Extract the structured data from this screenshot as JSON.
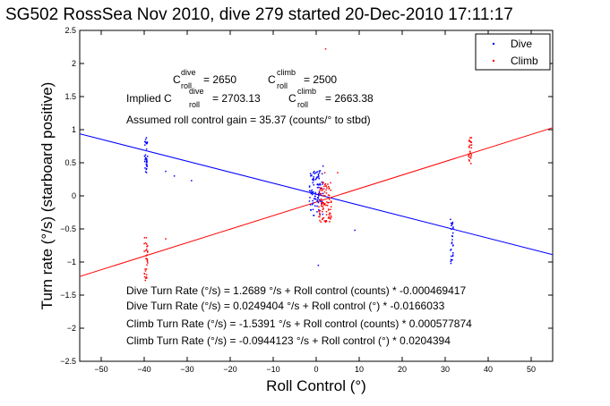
{
  "chart_data": {
    "type": "scatter",
    "title": "SG502 RossSea Nov 2010, dive 279 started 20-Dec-2010 17:11:17",
    "xlabel": "Roll Control (°)",
    "ylabel": "Turn rate (°/s) (starboard positive)",
    "xlim": [
      -55,
      55
    ],
    "ylim": [
      -2.5,
      2.5
    ],
    "xticks": [
      -50,
      -40,
      -30,
      -20,
      -10,
      0,
      10,
      20,
      30,
      40,
      50
    ],
    "yticks": [
      -2.5,
      -2,
      -1.5,
      -1,
      -0.5,
      0,
      0.5,
      1,
      1.5,
      2,
      2.5
    ],
    "xtick_labels": [
      "−50",
      "−40",
      "−30",
      "−20",
      "−10",
      "0",
      "10",
      "20",
      "30",
      "40",
      "50"
    ],
    "ytick_labels": [
      "−2.5",
      "−2",
      "−1.5",
      "−1",
      "−0.5",
      "0",
      "0.5",
      "1",
      "1.5",
      "2",
      "2.5"
    ],
    "grid": false,
    "legend_position": "top-right",
    "series": [
      {
        "name": "Dive",
        "color": "#0000ff",
        "marker": "point",
        "clusters": [
          {
            "x_center": -39.6,
            "x_spread": 0.4,
            "y_range": [
              0.35,
              0.88
            ],
            "count": 32
          },
          {
            "x_center": 0.0,
            "x_spread": 1.6,
            "y_range": [
              -0.3,
              0.38
            ],
            "count": 90
          },
          {
            "x_center": 31.6,
            "x_spread": 0.4,
            "y_range": [
              -1.05,
              -0.35
            ],
            "count": 28
          }
        ],
        "points": [
          [
            -35,
            0.37
          ],
          [
            -33,
            0.3
          ],
          [
            -29,
            0.23
          ],
          [
            0.5,
            -1.05
          ],
          [
            9,
            -0.52
          ],
          [
            1.6,
            0.45
          ]
        ]
      },
      {
        "name": "Climb",
        "color": "#ff0000",
        "marker": "point",
        "clusters": [
          {
            "x_center": -39.6,
            "x_spread": 0.4,
            "y_range": [
              -1.28,
              -0.62
            ],
            "count": 32
          },
          {
            "x_center": 2.1,
            "x_spread": 1.5,
            "y_range": [
              -0.4,
              0.22
            ],
            "count": 90
          },
          {
            "x_center": 35.8,
            "x_spread": 0.4,
            "y_range": [
              0.48,
              0.88
            ],
            "count": 24
          }
        ],
        "points": [
          [
            2.2,
            2.22
          ],
          [
            5,
            0.35
          ],
          [
            2,
            0.35
          ],
          [
            -35,
            -0.65
          ]
        ]
      }
    ],
    "fit_lines": [
      {
        "series": "Dive",
        "color": "#0000ff",
        "intercept": 0.0249404,
        "slope": -0.0166033,
        "x": [
          -55,
          55
        ]
      },
      {
        "series": "Climb",
        "color": "#ff0000",
        "intercept": -0.0944123,
        "slope": 0.0204394,
        "x": [
          -55,
          55
        ]
      }
    ],
    "annotations": {
      "c_dive_prefix": "C",
      "c_dive_sup": "dive",
      "c_dive_sub": "roll",
      "c_dive_value": "= 2650",
      "c_climb_prefix": "C",
      "c_climb_sup": "climb",
      "c_climb_sub": "roll",
      "c_climb_value": "= 2500",
      "implied_prefix": "Implied C",
      "implied_dive_sup": "dive",
      "implied_dive_sub": "roll",
      "implied_dive_value": "= 2703.13",
      "implied_climb_prefix": "C",
      "implied_climb_sup": "climb",
      "implied_climb_sub": "roll",
      "implied_climb_value": "= 2663.38",
      "gain_text": "Assumed roll control gain = 35.37 (counts/° to stbd)",
      "fit_texts": [
        "Dive Turn Rate (°/s) = 1.2689 °/s + Roll control (counts) * -0.000469417",
        "Dive Turn Rate (°/s) = 0.0249404 °/s + Roll control (°) * -0.0166033",
        "Climb Turn Rate (°/s) = -1.5391 °/s + Roll control (counts) * 0.000577874",
        "Climb Turn Rate (°/s) = -0.0944123 °/s + Roll control (°) * 0.0204394"
      ]
    }
  }
}
